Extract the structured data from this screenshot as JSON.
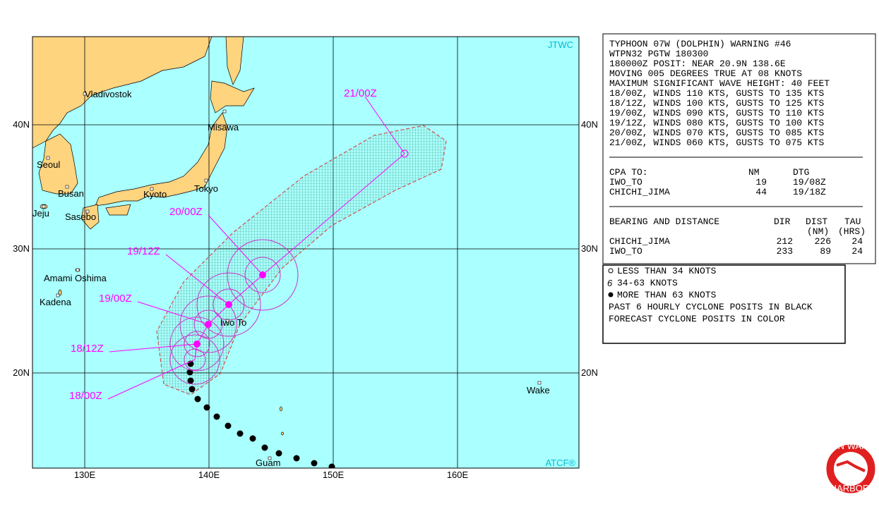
{
  "map": {
    "attribution_top": "JTWC",
    "attribution_bottom": "ATCF®",
    "lat_labels": [
      "40N",
      "30N",
      "20N"
    ],
    "lon_labels": [
      "130E",
      "140E",
      "150E",
      "160E"
    ],
    "places": [
      "Vladivostok",
      "Misawa",
      "Seoul",
      "Busan",
      "Kyoto",
      "Tokyo",
      "Jeju",
      "Sasebo",
      "Amami Oshima",
      "Kadena",
      "Iwo To",
      "Wake",
      "Guam"
    ],
    "forecast_labels": [
      "21/00Z",
      "20/00Z",
      "19/12Z",
      "19/00Z",
      "18/12Z",
      "18/00Z"
    ]
  },
  "warning": {
    "lines": [
      "TYPHOON 07W (DOLPHIN) WARNING #46",
      "WTPN32 PGTW 180300",
      "180000Z POSIT: NEAR 20.9N 138.6E",
      "MOVING 005 DEGREES TRUE AT 08 KNOTS",
      "MAXIMUM SIGNIFICANT WAVE HEIGHT: 40 FEET",
      "18/00Z, WINDS 110 KTS, GUSTS TO 135 KTS",
      "18/12Z, WINDS 100 KTS, GUSTS TO 125 KTS",
      "19/00Z, WINDS 090 KTS, GUSTS TO 110 KTS",
      "19/12Z, WINDS 080 KTS, GUSTS TO 100 KTS",
      "20/00Z, WINDS 070 KTS, GUSTS TO 085 KTS",
      "21/00Z, WINDS 060 KTS, GUSTS TO 075 KTS"
    ],
    "cpa_header": [
      "CPA TO:",
      "NM",
      "DTG"
    ],
    "cpa_rows": [
      [
        "IWO_TO",
        "19",
        "19/08Z"
      ],
      [
        "CHICHI_JIMA",
        "44",
        "19/18Z"
      ]
    ],
    "bearing_header": [
      "BEARING AND DISTANCE",
      "DIR",
      "DIST",
      "TAU"
    ],
    "bearing_units": [
      "(NM)",
      "(HRS)"
    ],
    "bearing_rows": [
      [
        "CHICHI_JIMA",
        "212",
        "226",
        "24"
      ],
      [
        "IWO_TO",
        "233",
        "89",
        "24"
      ]
    ]
  },
  "legend": {
    "lines": [
      "LESS THAN 34 KNOTS",
      "34-63 KNOTS",
      "MORE THAN 63 KNOTS",
      "PAST 6 HOURLY CYCLONE POSITS IN BLACK",
      "FORECAST CYCLONE POSITS IN COLOR"
    ]
  },
  "logo": {
    "top_text": "JOINT TYPHOON WARNING CENTER",
    "bottom_text": "PEARL HARBOR HAWAII"
  }
}
